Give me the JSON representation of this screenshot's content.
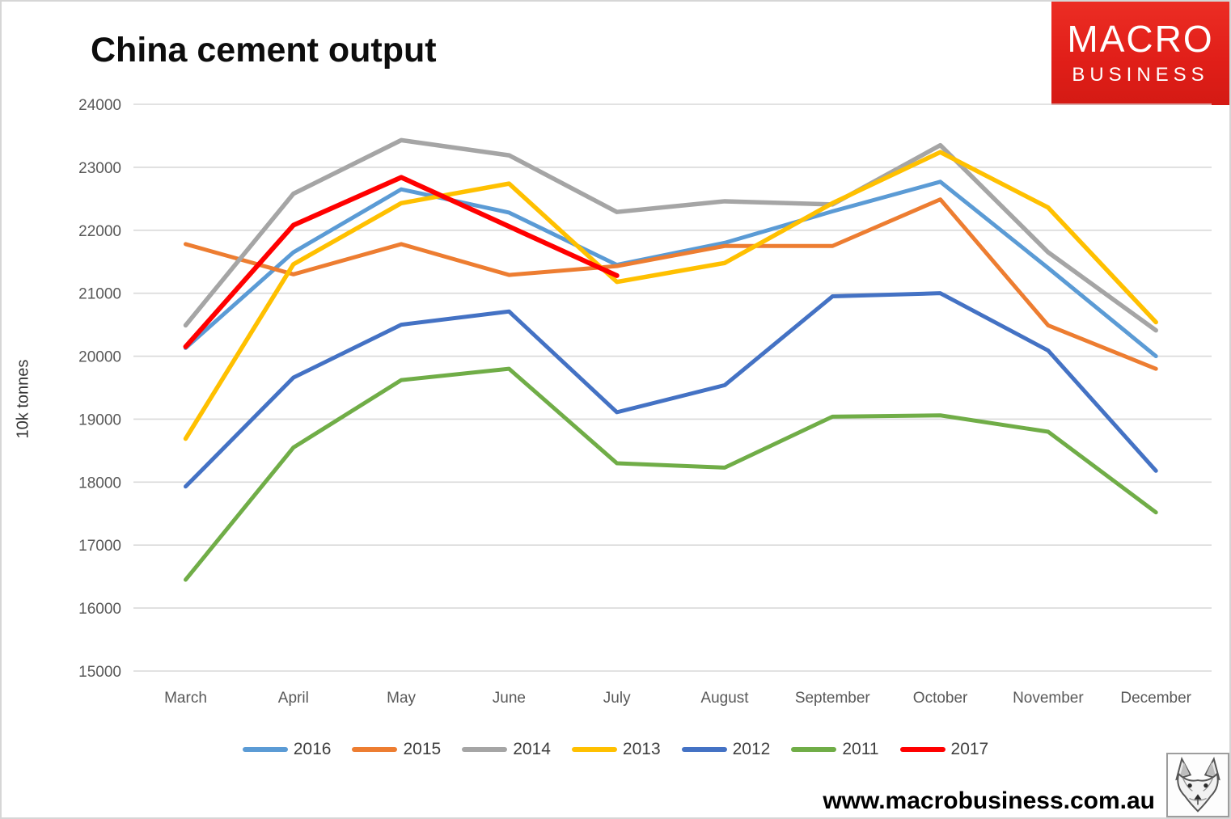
{
  "title": "China cement output",
  "logo": {
    "line1": "MACRO",
    "line2": "BUSINESS",
    "bg_color": "#e2231d",
    "text_color": "#ffffff"
  },
  "footer": {
    "website": "www.macrobusiness.com.au"
  },
  "icons": {
    "wolf_logo": "wolf-head-sketch"
  },
  "chart_data": {
    "type": "line",
    "title": "China cement output",
    "xlabel": "",
    "ylabel": "10k tonnes",
    "ylim": [
      15000,
      24000
    ],
    "ytick_step": 1000,
    "grid": true,
    "legend_position": "bottom",
    "categories": [
      "March",
      "April",
      "May",
      "June",
      "July",
      "August",
      "September",
      "October",
      "November",
      "December"
    ],
    "series": [
      {
        "name": "2016",
        "color": "#5B9BD5",
        "line_width": 5,
        "values": [
          20130,
          21650,
          22650,
          22280,
          21450,
          21800,
          22300,
          22770,
          21400,
          20000
        ]
      },
      {
        "name": "2015",
        "color": "#ED7D31",
        "line_width": 5,
        "values": [
          21780,
          21300,
          21780,
          21290,
          21430,
          21750,
          21750,
          22490,
          20490,
          19800
        ]
      },
      {
        "name": "2014",
        "color": "#A5A5A5",
        "line_width": 5.5,
        "values": [
          20490,
          22580,
          23430,
          23190,
          22290,
          22460,
          22410,
          23350,
          21650,
          20410
        ]
      },
      {
        "name": "2013",
        "color": "#FFC000",
        "line_width": 5.5,
        "values": [
          18690,
          21460,
          22430,
          22740,
          21180,
          21480,
          22430,
          23240,
          22360,
          20540
        ]
      },
      {
        "name": "2012",
        "color": "#4472C4",
        "line_width": 5,
        "values": [
          17930,
          19660,
          20500,
          20710,
          19110,
          19540,
          20950,
          21000,
          20090,
          18180
        ]
      },
      {
        "name": "2011",
        "color": "#70AD47",
        "line_width": 5,
        "values": [
          16450,
          18550,
          19620,
          19800,
          18300,
          18230,
          19040,
          19060,
          18800,
          17520
        ]
      },
      {
        "name": "2017",
        "color": "#FF0000",
        "line_width": 6,
        "values": [
          20150,
          22080,
          22840,
          22060,
          21280,
          null,
          null,
          null,
          null,
          null
        ]
      }
    ]
  }
}
